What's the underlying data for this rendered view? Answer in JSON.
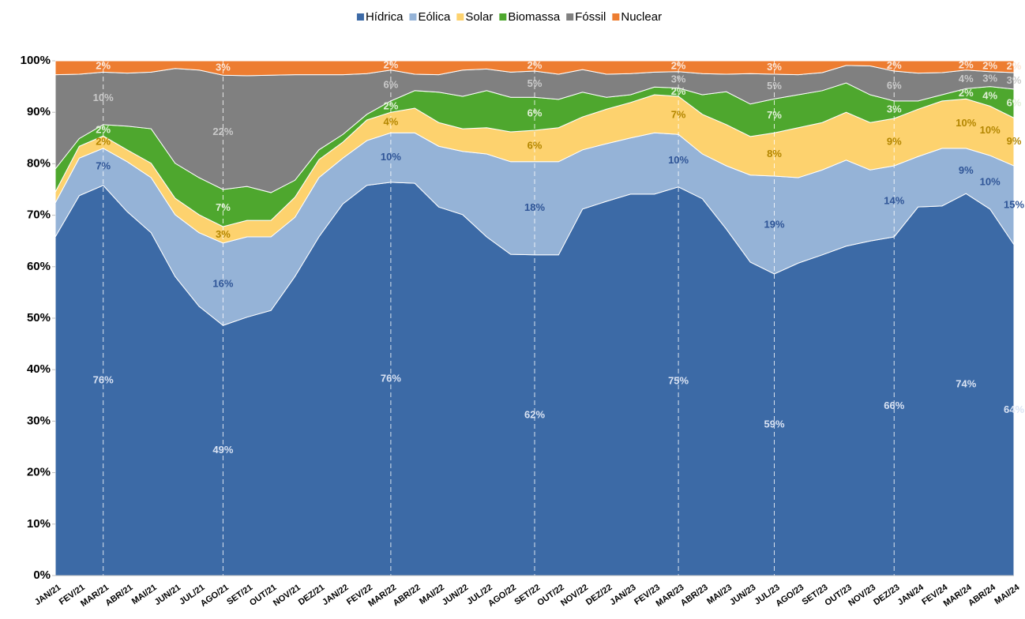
{
  "chart_data": {
    "type": "stacked_area",
    "categories": [
      "JAN/21",
      "FEV/21",
      "MAR/21",
      "ABR/21",
      "MAI/21",
      "JUN/21",
      "JUL/21",
      "AGO/21",
      "SET/21",
      "OUT/21",
      "NOV/21",
      "DEZ/21",
      "JAN/22",
      "FEV/22",
      "MAR/22",
      "ABR/22",
      "MAI/22",
      "JUN/22",
      "JUL/22",
      "AGO/22",
      "SET/22",
      "OUT/22",
      "NOV/22",
      "DEZ/22",
      "JAN/23",
      "FEV/23",
      "MAR/23",
      "ABR/23",
      "MAI/23",
      "JUN/23",
      "JUL/23",
      "AGO/23",
      "SET/23",
      "OUT/23",
      "NOV/23",
      "DEZ/23",
      "JAN/24",
      "FEV/24",
      "MAR/24",
      "ABR/24",
      "MAI/24"
    ],
    "ylim": [
      0,
      100
    ],
    "yticks": [
      {
        "value": 0,
        "label": "0%"
      },
      {
        "value": 10,
        "label": "10%"
      },
      {
        "value": 20,
        "label": "20%"
      },
      {
        "value": 30,
        "label": "30%"
      },
      {
        "value": 40,
        "label": "40%"
      },
      {
        "value": 50,
        "label": "50%"
      },
      {
        "value": 60,
        "label": "60%"
      },
      {
        "value": 70,
        "label": "70%"
      },
      {
        "value": 80,
        "label": "80%"
      },
      {
        "value": 90,
        "label": "90%"
      },
      {
        "value": 100,
        "label": "100%"
      }
    ],
    "legend": "top",
    "series": [
      {
        "name": "Hídrica",
        "color": "#3c6aa6",
        "values": [
          65.8,
          73.8,
          75.8,
          70.7,
          66.6,
          58.1,
          52.3,
          48.6,
          50.2,
          51.5,
          58.1,
          65.8,
          72.2,
          75.8,
          76.4,
          76.2,
          71.6,
          70.1,
          65.8,
          62.4,
          62.3,
          62.3,
          71.2,
          72.7,
          74.1,
          74.1,
          75.5,
          73.2,
          67.3,
          60.9,
          58.6,
          60.7,
          62.3,
          64.0,
          65.0,
          65.8,
          71.6,
          71.8,
          74.2,
          71.2,
          64.3
        ],
        "value_labels": [
          null,
          null,
          "76%",
          null,
          null,
          null,
          null,
          "49%",
          null,
          null,
          null,
          null,
          null,
          null,
          "76%",
          null,
          null,
          null,
          null,
          null,
          "62%",
          null,
          null,
          null,
          null,
          null,
          "75%",
          null,
          null,
          null,
          "59%",
          null,
          null,
          null,
          null,
          "66%",
          null,
          null,
          "74%",
          null,
          "64%"
        ]
      },
      {
        "name": "Eólica",
        "color": "#95b3d7",
        "values": [
          6.6,
          7.3,
          7.2,
          9.7,
          10.7,
          12.0,
          14.3,
          16.0,
          15.6,
          14.3,
          11.5,
          11.5,
          8.9,
          8.7,
          9.6,
          9.8,
          11.8,
          12.3,
          16.1,
          18.0,
          18.1,
          18.1,
          11.5,
          11.2,
          10.9,
          11.9,
          10.2,
          8.7,
          12.3,
          16.9,
          19.0,
          16.6,
          16.5,
          16.7,
          13.8,
          13.8,
          9.8,
          11.2,
          8.8,
          10.4,
          15.3
        ],
        "value_labels": [
          null,
          null,
          "7%",
          null,
          null,
          null,
          null,
          "16%",
          null,
          null,
          null,
          null,
          null,
          null,
          "10%",
          null,
          null,
          null,
          null,
          null,
          "18%",
          null,
          null,
          null,
          null,
          null,
          "10%",
          null,
          null,
          null,
          "19%",
          null,
          null,
          null,
          null,
          "14%",
          null,
          null,
          "9%",
          "10%",
          "15%"
        ]
      },
      {
        "name": "Solar",
        "color": "#fdd26e",
        "values": [
          2.1,
          2.3,
          2.4,
          2.3,
          2.8,
          3.2,
          3.5,
          3.2,
          3.2,
          3.2,
          3.9,
          3.5,
          3.1,
          4.0,
          4.0,
          4.8,
          4.6,
          4.4,
          5.1,
          5.8,
          6.1,
          6.6,
          6.4,
          6.7,
          6.9,
          7.4,
          7.4,
          7.7,
          8.0,
          7.5,
          8.4,
          9.7,
          9.2,
          9.3,
          9.2,
          9.2,
          9.2,
          9.2,
          9.6,
          9.6,
          9.3
        ],
        "value_labels": [
          null,
          null,
          "2%",
          null,
          null,
          null,
          null,
          "3%",
          null,
          null,
          null,
          null,
          null,
          null,
          "4%",
          null,
          null,
          null,
          null,
          null,
          "6%",
          null,
          null,
          null,
          null,
          null,
          "7%",
          null,
          null,
          null,
          "8%",
          null,
          null,
          null,
          null,
          "9%",
          null,
          null,
          "10%",
          "10%",
          "9%"
        ]
      },
      {
        "name": "Biomassa",
        "color": "#4ea72e",
        "values": [
          4.5,
          1.5,
          2.2,
          4.6,
          6.7,
          6.8,
          7.2,
          7.2,
          6.6,
          5.4,
          3.3,
          1.9,
          1.5,
          1.1,
          2.2,
          3.4,
          5.9,
          6.3,
          7.2,
          6.7,
          6.4,
          5.5,
          4.8,
          2.3,
          1.5,
          1.5,
          1.6,
          3.8,
          6.4,
          6.3,
          6.6,
          6.4,
          6.2,
          5.7,
          5.4,
          3.4,
          1.6,
          1.2,
          2.0,
          3.8,
          5.6
        ],
        "value_labels": [
          null,
          null,
          "2%",
          null,
          null,
          null,
          null,
          "7%",
          null,
          null,
          null,
          null,
          null,
          null,
          "2%",
          null,
          null,
          null,
          null,
          null,
          "6%",
          null,
          null,
          null,
          null,
          null,
          "2%",
          null,
          null,
          null,
          "7%",
          null,
          null,
          null,
          null,
          "3%",
          null,
          null,
          "2%",
          "4%",
          "6%"
        ]
      },
      {
        "name": "Fóssil",
        "color": "#808080",
        "values": [
          18.3,
          12.5,
          10.2,
          10.3,
          11.0,
          18.4,
          20.9,
          22.2,
          21.5,
          22.8,
          20.5,
          14.6,
          11.6,
          7.9,
          6.0,
          3.2,
          3.4,
          5.1,
          4.2,
          4.9,
          5.1,
          4.9,
          4.4,
          4.5,
          4.1,
          2.9,
          3.2,
          4.1,
          3.4,
          5.9,
          4.8,
          3.9,
          3.5,
          3.4,
          5.6,
          5.8,
          5.4,
          4.3,
          3.6,
          2.9,
          3.2
        ],
        "value_labels": [
          null,
          null,
          "10%",
          null,
          null,
          null,
          null,
          "22%",
          null,
          null,
          null,
          null,
          null,
          null,
          "6%",
          null,
          null,
          null,
          null,
          null,
          "5%",
          null,
          null,
          null,
          null,
          null,
          "3%",
          null,
          null,
          null,
          "5%",
          null,
          null,
          null,
          null,
          "6%",
          null,
          null,
          "4%",
          "3%",
          "3%"
        ]
      },
      {
        "name": "Nuclear",
        "color": "#ed7d31",
        "values": [
          2.7,
          2.6,
          2.2,
          2.4,
          2.2,
          1.5,
          1.8,
          2.8,
          2.9,
          2.8,
          2.7,
          2.7,
          2.7,
          2.5,
          1.8,
          2.6,
          2.7,
          1.8,
          1.6,
          2.2,
          2.0,
          2.6,
          1.7,
          2.6,
          2.5,
          2.2,
          2.1,
          2.5,
          2.6,
          2.5,
          2.6,
          2.7,
          2.3,
          0.9,
          1.0,
          2.0,
          2.4,
          2.3,
          1.8,
          2.1,
          2.3
        ],
        "value_labels": [
          null,
          null,
          "2%",
          null,
          null,
          null,
          null,
          "3%",
          null,
          null,
          null,
          null,
          null,
          null,
          "2%",
          null,
          null,
          null,
          null,
          null,
          "2%",
          null,
          null,
          null,
          null,
          null,
          "2%",
          null,
          null,
          null,
          "3%",
          null,
          null,
          null,
          null,
          "2%",
          null,
          null,
          "2%",
          "2%",
          "2%"
        ]
      }
    ]
  }
}
